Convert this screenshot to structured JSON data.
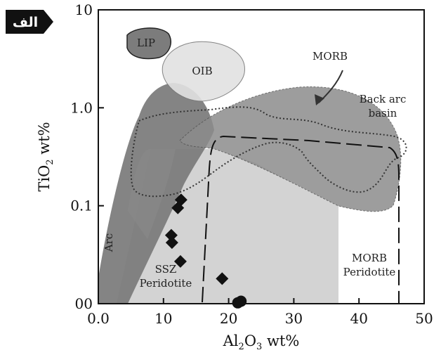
{
  "chart_data": {
    "type": "scatter",
    "badge": "الف",
    "xlabel": "Al2O3 wt%",
    "ylabel": "TiO2 wt%",
    "xlim": [
      0,
      50
    ],
    "ylim": [
      0.01,
      10
    ],
    "y_scale": "log",
    "x_ticks": [
      "0.0",
      "10",
      "20",
      "30",
      "40",
      "50"
    ],
    "y_ticks": [
      {
        "value": 0.01,
        "label": "00"
      },
      {
        "value": 0.1,
        "label": "0.1"
      },
      {
        "value": 1,
        "label": "1.0"
      },
      {
        "value": 10,
        "label": "10"
      }
    ],
    "region_labels": {
      "lip": "LIP",
      "oib": "OIB",
      "morb": "MORB",
      "back_arc_1": "Back arc",
      "back_arc_2": "basin",
      "arc": "Arc",
      "ssz_1": "SSZ",
      "ssz_2": "Peridotite",
      "morb_perid_1": "MORB",
      "morb_perid_2": "Peridotite"
    },
    "series": [
      {
        "marker": "diamond",
        "points": [
          [
            12.7,
            0.115
          ],
          [
            12.2,
            0.095
          ],
          [
            11.2,
            0.05
          ],
          [
            11.3,
            0.042
          ],
          [
            12.6,
            0.027
          ],
          [
            19.0,
            0.018
          ]
        ]
      },
      {
        "marker": "circle",
        "points": [
          [
            21.4,
            0.0102
          ],
          [
            21.9,
            0.0106
          ]
        ]
      }
    ],
    "grid": false
  }
}
